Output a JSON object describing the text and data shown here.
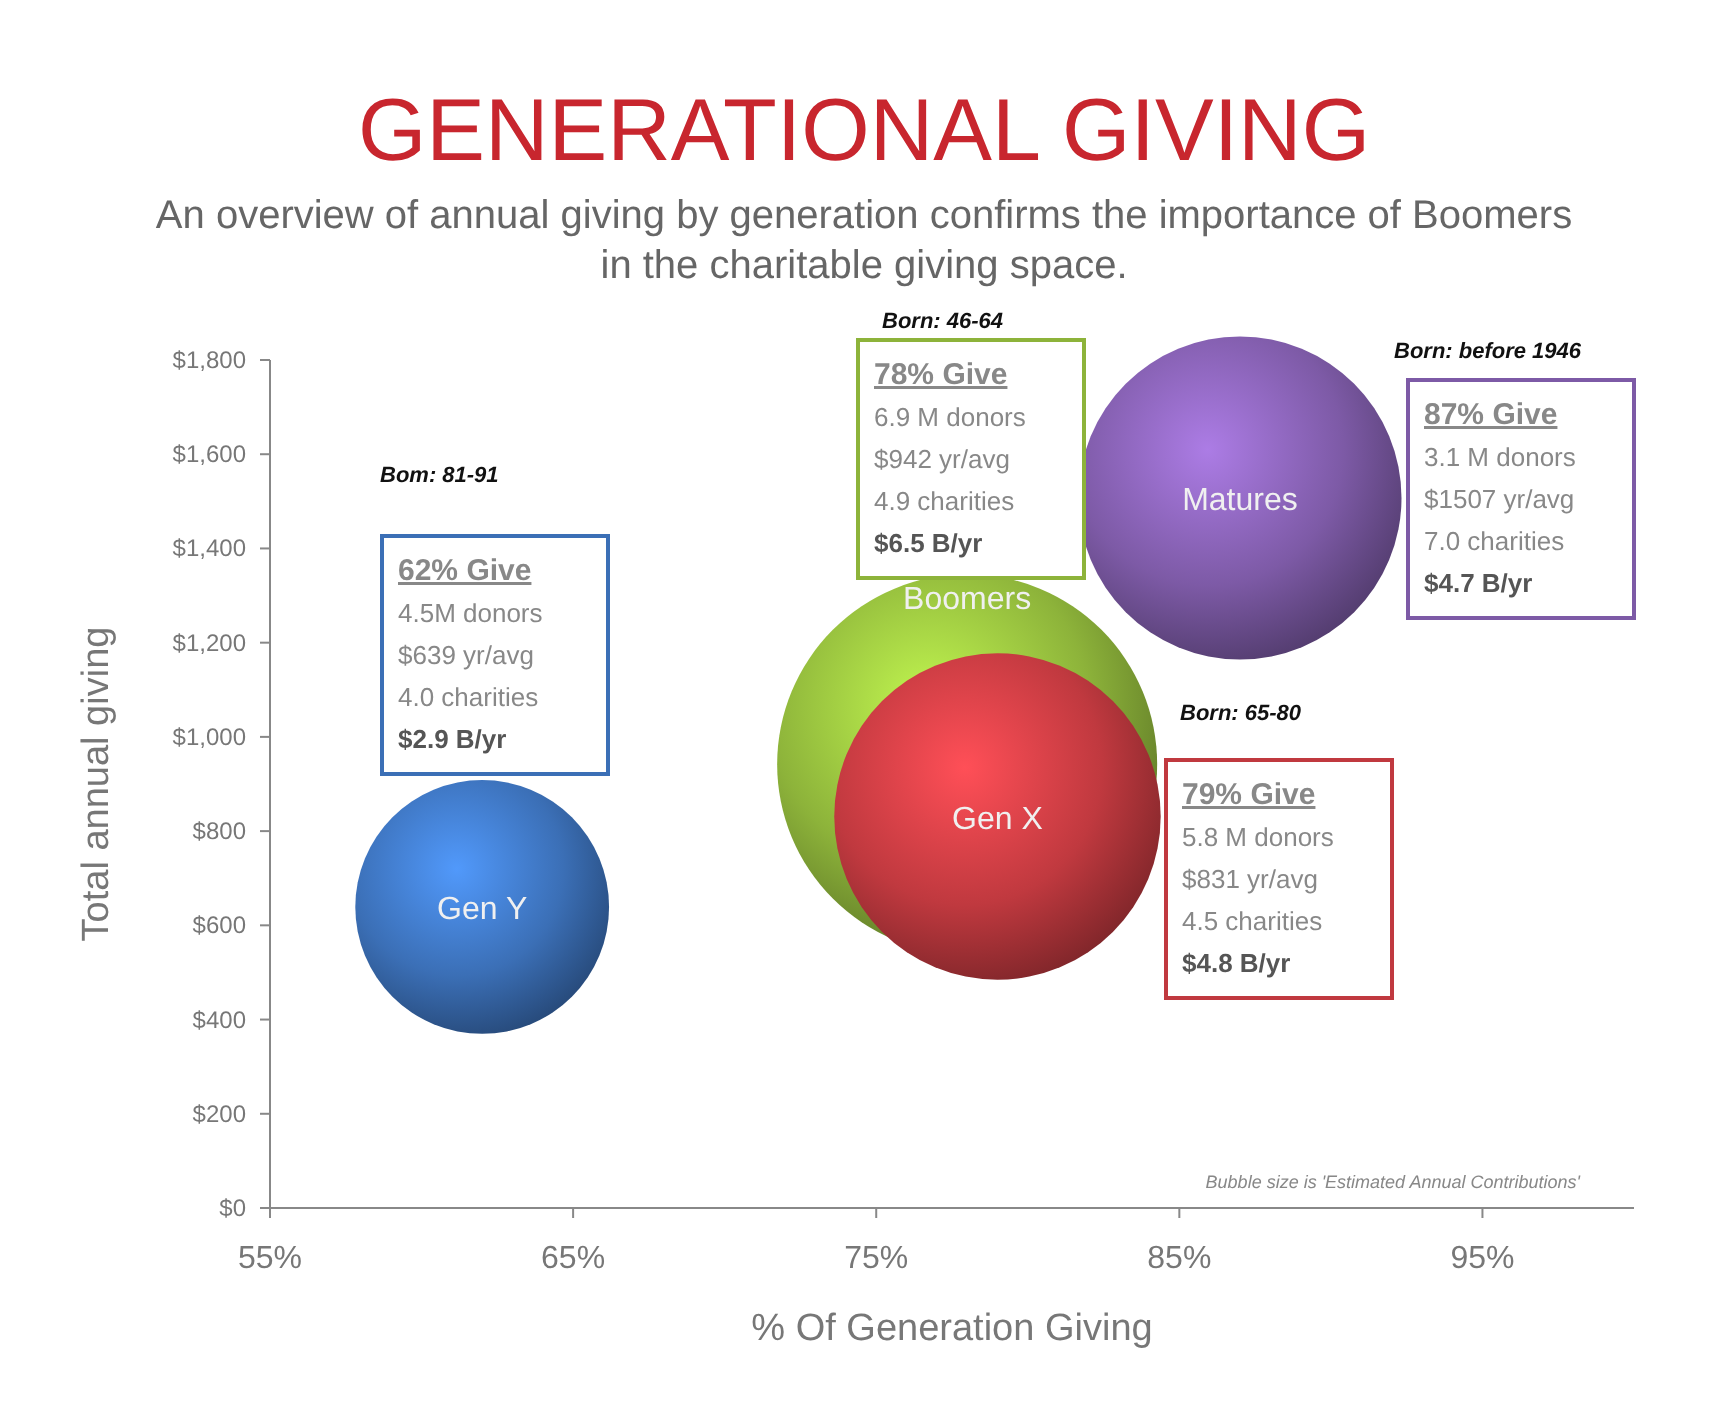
{
  "chart_data": {
    "type": "bubble",
    "title": "GENERATIONAL GIVING",
    "subtitle": "An overview of annual giving by generation confirms the importance of Boomers in the charitable giving space.",
    "xlabel": "% Of Generation Giving",
    "ylabel": "Total annual giving",
    "series": [
      {
        "name": "Gen Y",
        "color": "#3b6fb6",
        "x": [
          62
        ],
        "values": [
          639
        ],
        "sizes": [
          0.446
        ]
      },
      {
        "name": "Boomers",
        "color": "#8db33a",
        "x": [
          78
        ],
        "values": [
          942
        ],
        "sizes": [
          1
        ]
      },
      {
        "name": "Gen X",
        "color": "#c0393f",
        "x": [
          79
        ],
        "values": [
          831
        ],
        "sizes": [
          0.738
        ]
      },
      {
        "name": "Matures",
        "color": "#7d5aa6",
        "x": [
          87
        ],
        "values": [
          1507
        ],
        "sizes": [
          0.723
        ]
      }
    ],
    "xlim": [
      55,
      100
    ],
    "xticks": [
      {
        "value": 55,
        "label": "55%"
      },
      {
        "value": 65,
        "label": "65%"
      },
      {
        "value": 75,
        "label": "75%"
      },
      {
        "value": 85,
        "label": "85%"
      },
      {
        "value": 95,
        "label": "95%"
      }
    ],
    "ylim": [
      0,
      1800
    ],
    "yticks": [
      {
        "value": 0,
        "label": "$0"
      },
      {
        "value": 200,
        "label": "$200"
      },
      {
        "value": 400,
        "label": "$400"
      },
      {
        "value": 600,
        "label": "$600"
      },
      {
        "value": 800,
        "label": "$800"
      },
      {
        "value": 1000,
        "label": "$1,000"
      },
      {
        "value": 1200,
        "label": "$1,200"
      },
      {
        "value": 1400,
        "label": "$1,400"
      },
      {
        "value": 1600,
        "label": "$1,600"
      },
      {
        "value": 1800,
        "label": "$1,800"
      }
    ],
    "grid": false,
    "annotations": [
      "Bom: 81-91",
      "62% Give\n4.5M donors\n$639 yr/avg\n4.0 charities\n$2.9 B/yr",
      "Born: 46-64",
      "78% Give\n6.9 M donors\n$942 yr/avg\n4.9 charities\n$6.5 B/yr",
      "Born: before 1946",
      "87% Give\n3.1 M donors\n$1507 yr/avg\n7.0 charities\n$4.7 B/yr",
      "Born: 65-80",
      "79% Give\n5.8 M donors\n$831 yr/avg\n4.5 charities\n$4.8 B/yr",
      "Bubble size is 'Estimated Annual Contributions'"
    ]
  }
}
